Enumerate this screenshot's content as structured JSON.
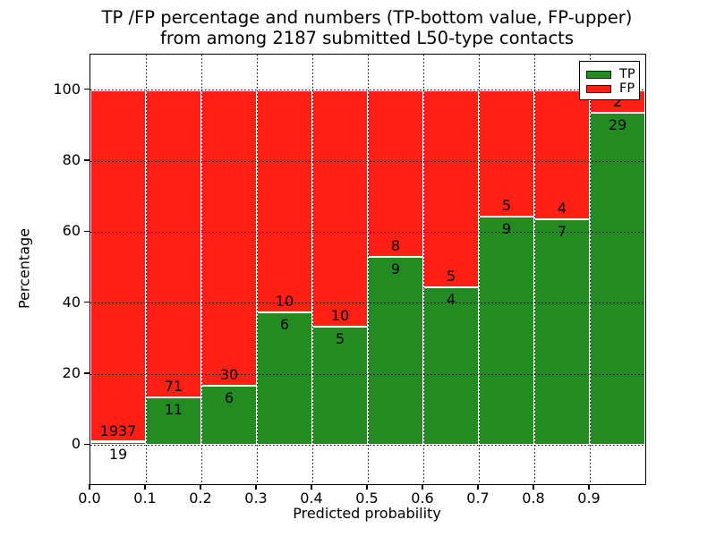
{
  "title": {
    "line1": "TP /FP percentage and numbers (TP-bottom value, FP-upper)",
    "line2": "from among 2187 submitted L50-type contacts"
  },
  "axes": {
    "xlabel": "Predicted probability",
    "ylabel": "Percentage",
    "xtick_labels": [
      "0.0",
      "0.1",
      "0.2",
      "0.3",
      "0.4",
      "0.5",
      "0.6",
      "0.7",
      "0.8",
      "0.9"
    ],
    "ytick_labels": [
      "0",
      "20",
      "40",
      "60",
      "80",
      "100"
    ]
  },
  "legend": {
    "position": "upper right",
    "items": [
      {
        "label": "TP",
        "color": "#228B22"
      },
      {
        "label": "FP",
        "color": "#ff2015"
      }
    ]
  },
  "colors": {
    "tp": "#228B22",
    "fp": "#ff2015",
    "grid": "#000000",
    "background": "#ffffff"
  },
  "chart_data": {
    "type": "bar",
    "stacked": true,
    "normalization": "each 0.1-wide bin stacked to 100%; printed numbers are raw TP (bottom) and FP (upper) counts",
    "title": "TP /FP percentage and numbers (TP-bottom value, FP-upper) from among 2187 submitted L50-type contacts",
    "xlabel": "Predicted probability",
    "ylabel": "Percentage",
    "bin_starts": [
      0.0,
      0.1,
      0.2,
      0.3,
      0.4,
      0.5,
      0.6,
      0.7,
      0.8,
      0.9
    ],
    "bin_width": 0.1,
    "series": [
      {
        "name": "TP",
        "counts": [
          19,
          11,
          6,
          6,
          5,
          9,
          4,
          9,
          7,
          29
        ]
      },
      {
        "name": "FP",
        "counts": [
          1937,
          71,
          30,
          10,
          10,
          8,
          5,
          5,
          4,
          2
        ]
      }
    ],
    "total_submitted": 2187,
    "xlim": [
      0,
      1
    ],
    "ylim": [
      -11,
      110
    ],
    "yticks": [
      0,
      20,
      40,
      60,
      80,
      100
    ],
    "grid": "dotted",
    "legend_position": "upper right"
  }
}
